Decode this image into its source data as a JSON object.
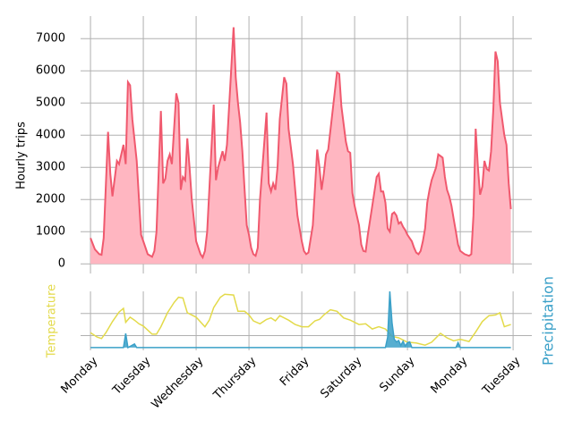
{
  "chart_data": [
    {
      "type": "area",
      "ylabel": "Hourly trips",
      "color": "#f0596e",
      "fill": "#ffb6c1",
      "xlim": [
        -4.5,
        200.5
      ],
      "ylim": [
        -300,
        7700
      ],
      "yticks": [
        0,
        1000,
        2000,
        3000,
        4000,
        5000,
        6000,
        7000
      ],
      "grid": true,
      "x": [
        0,
        2,
        4,
        5,
        6,
        8,
        9,
        10,
        12,
        13,
        15,
        16,
        17,
        18,
        19,
        21,
        23,
        24,
        26,
        28,
        29,
        30,
        32,
        33,
        34,
        35,
        36,
        37,
        39,
        40,
        41,
        42,
        43,
        44,
        45,
        46,
        48,
        50,
        51,
        52,
        53,
        56,
        57,
        58,
        60,
        61,
        62,
        65,
        66,
        67,
        68,
        69,
        70,
        71,
        72,
        73,
        74,
        75,
        76,
        77,
        80,
        81,
        82,
        83,
        84,
        85,
        86,
        88,
        89,
        90,
        92,
        94,
        96,
        97,
        98,
        99,
        101,
        103,
        104,
        105,
        106,
        107,
        108,
        112,
        113,
        114,
        116,
        117,
        118,
        119,
        120,
        122,
        123,
        124,
        125,
        126,
        128,
        130,
        131,
        132,
        133,
        134,
        135,
        136,
        137,
        138,
        139,
        140,
        141,
        142,
        143,
        144,
        146,
        147,
        148,
        149,
        150,
        151,
        152,
        153,
        154,
        155,
        156,
        157,
        158,
        159,
        160,
        161,
        162,
        163,
        164,
        165,
        166,
        167,
        168,
        170,
        172,
        173,
        174,
        175,
        176,
        177,
        178,
        179,
        180,
        181,
        182,
        183,
        184,
        185,
        186,
        188,
        189,
        190,
        191
      ],
      "values": [
        800,
        450,
        300,
        280,
        800,
        4100,
        2800,
        2100,
        3200,
        3100,
        3700,
        3100,
        5650,
        5550,
        4500,
        3200,
        900,
        700,
        300,
        220,
        400,
        1000,
        4750,
        2500,
        2650,
        3200,
        3400,
        3100,
        5300,
        5000,
        2300,
        2700,
        2600,
        3900,
        3000,
        2000,
        700,
        300,
        200,
        400,
        1000,
        4950,
        2600,
        3000,
        3500,
        3200,
        3700,
        7350,
        5800,
        5000,
        4400,
        3500,
        2300,
        1200,
        900,
        500,
        300,
        250,
        500,
        2000,
        4700,
        2500,
        2250,
        2500,
        2300,
        3000,
        4500,
        5800,
        5600,
        4200,
        3100,
        1500,
        700,
        400,
        300,
        350,
        1200,
        3550,
        3000,
        2300,
        2800,
        3400,
        3550,
        5950,
        5900,
        4900,
        3800,
        3500,
        3450,
        2200,
        1800,
        1200,
        600,
        400,
        380,
        900,
        1800,
        2700,
        2800,
        2250,
        2250,
        1900,
        1100,
        1000,
        1550,
        1600,
        1500,
        1250,
        1300,
        1150,
        1050,
        900,
        700,
        500,
        350,
        300,
        400,
        700,
        1100,
        1900,
        2300,
        2600,
        2800,
        3000,
        3400,
        3350,
        3300,
        2700,
        2300,
        2100,
        1800,
        1400,
        1000,
        600,
        400,
        300,
        250,
        300,
        1500,
        4200,
        3000,
        2150,
        2400,
        3200,
        2950,
        2900,
        3500,
        4800,
        6600,
        6300,
        5000,
        4000,
        3700,
        2500,
        1700
      ]
    },
    {
      "type": "line",
      "ylabel": "Temperature",
      "y2label": "Precipitation",
      "xlim": [
        -4.5,
        200.5
      ],
      "ylim": [
        0,
        8
      ],
      "y2lim": [
        -0.4,
        8
      ],
      "yticks": [
        2,
        5
      ],
      "grid": true,
      "xticks": [
        {
          "value": 0,
          "label": "Monday"
        },
        {
          "value": 24,
          "label": "Tuesday"
        },
        {
          "value": 48,
          "label": "Wednesday"
        },
        {
          "value": 72,
          "label": "Thursday"
        },
        {
          "value": 96,
          "label": "Friday"
        },
        {
          "value": 120,
          "label": "Saturday"
        },
        {
          "value": 144,
          "label": "Sunday"
        },
        {
          "value": 168,
          "label": "Monday"
        },
        {
          "value": 192,
          "label": "Tuesday"
        }
      ],
      "series": [
        {
          "name": "Temperature",
          "color": "#e3da4a",
          "x": [
            0,
            3,
            5,
            7,
            10,
            13,
            15,
            16,
            18,
            20,
            22,
            24,
            28,
            30,
            32,
            35,
            38,
            40,
            42,
            44,
            46,
            48,
            52,
            54,
            56,
            59,
            61,
            65,
            67,
            70,
            72,
            74,
            77,
            80,
            82,
            84,
            86,
            88,
            90,
            93,
            96,
            99,
            102,
            104,
            106,
            109,
            112,
            115,
            118,
            122,
            125,
            128,
            131,
            134,
            137,
            140,
            144,
            148,
            152,
            155,
            159,
            162,
            165,
            168,
            172,
            175,
            178,
            181,
            184,
            186,
            188,
            191
          ],
          "values": [
            2.4,
            1.8,
            1.6,
            2.4,
            3.9,
            5.2,
            5.7,
            3.8,
            4.5,
            4.1,
            3.6,
            3.3,
            2.2,
            2.2,
            3.2,
            5.1,
            6.5,
            7.2,
            7.1,
            5.1,
            4.8,
            4.5,
            3.2,
            4.1,
            5.8,
            7.2,
            7.6,
            7.5,
            5.3,
            5.3,
            4.8,
            4.0,
            3.6,
            4.2,
            4.4,
            4.0,
            4.7,
            4.4,
            4.1,
            3.5,
            3.2,
            3.2,
            4.0,
            4.2,
            4.8,
            5.5,
            5.3,
            4.4,
            4.1,
            3.5,
            3.6,
            2.9,
            3.2,
            2.9,
            1.9,
            1.7,
            1.1,
            1.0,
            0.7,
            1.1,
            2.3,
            1.7,
            1.3,
            1.5,
            1.2,
            2.5,
            3.9,
            4.7,
            4.8,
            5.1,
            3.2,
            3.5
          ]
        },
        {
          "name": "Precipitation",
          "color": "#3aa0c8",
          "axis": "y2",
          "x": [
            0,
            15,
            16,
            17,
            20,
            21,
            134,
            135,
            136,
            137,
            138,
            139,
            140,
            141,
            142,
            143,
            144,
            145,
            146,
            166,
            167,
            168,
            191
          ],
          "values": [
            0,
            0,
            2.0,
            0,
            0.5,
            0,
            0,
            1.5,
            8.0,
            3.5,
            1.2,
            0.8,
            1.0,
            0.3,
            0.9,
            0.2,
            0.7,
            0.8,
            0,
            0,
            0.7,
            0,
            0
          ]
        }
      ]
    }
  ]
}
